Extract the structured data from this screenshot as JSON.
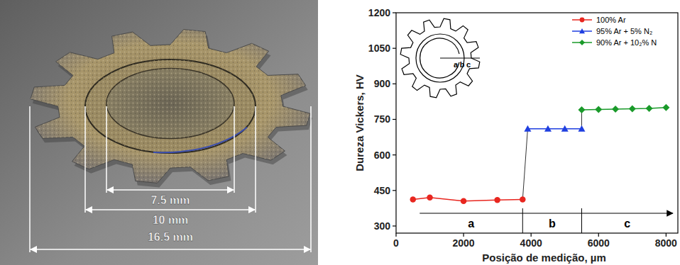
{
  "chart_data": {
    "type": "line",
    "x_label": "Posição de medição, µm",
    "y_label": "Dureza Vickers, HV",
    "xlim": [
      0,
      8350
    ],
    "ylim": [
      270,
      1200
    ],
    "xticks": [
      0,
      2000,
      4000,
      6000,
      8000
    ],
    "yticks": [
      300,
      450,
      600,
      750,
      900,
      1050,
      1200
    ],
    "grid": false,
    "legend": "upper right",
    "series": [
      {
        "name": "100% Ar",
        "color": "#e8261f",
        "marker": "circle",
        "x": [
          500,
          1000,
          2000,
          3000,
          3750
        ],
        "values": [
          412,
          420,
          405,
          410,
          412
        ]
      },
      {
        "name": "95% Ar + 5% N₂",
        "color": "#1f3fe0",
        "marker": "triangle",
        "x": [
          3900,
          4500,
          5000,
          5500
        ],
        "values": [
          710,
          710,
          710,
          710
        ]
      },
      {
        "name": "90% Ar + 10₂% N",
        "color": "#1a9a2a",
        "marker": "diamond",
        "x": [
          5500,
          6000,
          6500,
          7000,
          7500,
          8000
        ],
        "values": [
          790,
          792,
          793,
          795,
          796,
          800
        ]
      }
    ],
    "regions": [
      {
        "label": "a",
        "start": 700,
        "end": 3750
      },
      {
        "label": "b",
        "start": 3750,
        "end": 5500
      },
      {
        "label": "c",
        "start": 5500,
        "end": 8200
      }
    ]
  },
  "photo": {
    "dimensions": [
      {
        "label": "7.5 mm",
        "value": 7.5
      },
      {
        "label": "10 mm",
        "value": 10
      },
      {
        "label": "16.5 mm",
        "value": 16.5
      }
    ]
  }
}
